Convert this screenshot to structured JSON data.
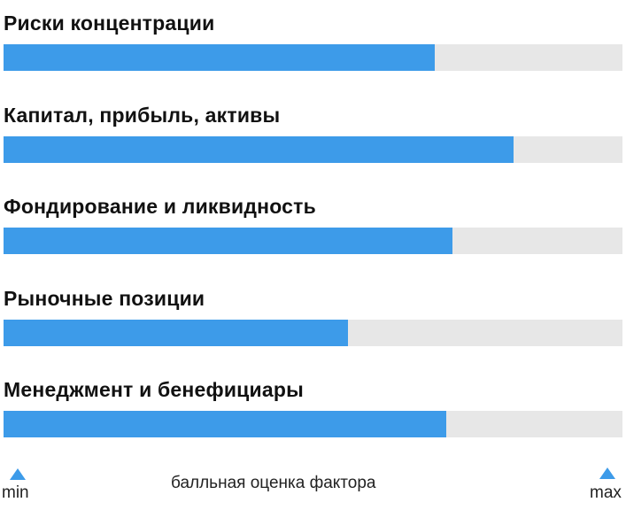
{
  "chart_data": {
    "type": "bar",
    "orientation": "horizontal",
    "categories": [
      "Риски концентрации",
      "Капитал, прибыль, активы",
      "Фондирование и ликвидность",
      "Рыночные позиции",
      "Менеджмент и бенефициары"
    ],
    "values": [
      0.697,
      0.824,
      0.726,
      0.557,
      0.715
    ],
    "xlim": [
      0,
      1
    ],
    "xlabel": "балльная оценка фактора",
    "min_label": "min",
    "max_label": "max",
    "grid": false,
    "legend": "none",
    "colors": {
      "fill": "#3d9be9",
      "track": "#e7e7e7",
      "marker": "#3d9be9"
    }
  }
}
